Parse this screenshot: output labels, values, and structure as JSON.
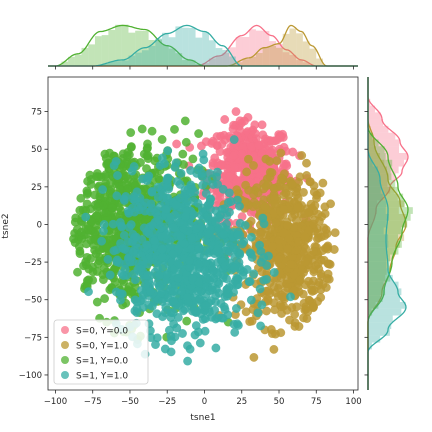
{
  "chart_data": {
    "type": "scatter",
    "subtype": "jointplot",
    "xlabel": "tsne1",
    "ylabel": "tsne2",
    "xlim": [
      -105,
      103
    ],
    "ylim": [
      -110,
      98
    ],
    "xticks": [
      "−100",
      "−75",
      "−50",
      "−25",
      "0",
      "25",
      "50",
      "75",
      "100"
    ],
    "xtick_values": [
      -100,
      -75,
      -50,
      -25,
      0,
      25,
      50,
      75,
      100
    ],
    "yticks": [
      "75",
      "50",
      "25",
      "0",
      "−25",
      "−50",
      "−75",
      "−100"
    ],
    "ytick_values": [
      75,
      50,
      25,
      0,
      -25,
      -50,
      -75,
      -100
    ],
    "legend_position": "lower-left",
    "series": [
      {
        "name": "S=0, Y=0.0",
        "color": "#f77189",
        "cluster": {
          "cx": 30,
          "cy": 35,
          "sx": 14,
          "sy": 16
        },
        "kde_x": [
          [
            -5,
            0
          ],
          [
            10,
            0.25
          ],
          [
            25,
            0.75
          ],
          [
            35,
            1.0
          ],
          [
            45,
            0.75
          ],
          [
            55,
            0.4
          ],
          [
            65,
            0.15
          ],
          [
            75,
            0
          ]
        ],
        "kde_y": [
          [
            -10,
            0
          ],
          [
            10,
            0.2
          ],
          [
            25,
            0.55
          ],
          [
            35,
            0.85
          ],
          [
            45,
            1.0
          ],
          [
            55,
            0.8
          ],
          [
            70,
            0.35
          ],
          [
            85,
            0
          ]
        ]
      },
      {
        "name": "S=0, Y=1.0",
        "color": "#bb9832",
        "cluster": {
          "cx": 55,
          "cy": -15,
          "sx": 16,
          "sy": 26
        },
        "kde_x": [
          [
            15,
            0
          ],
          [
            30,
            0.2
          ],
          [
            40,
            0.45
          ],
          [
            50,
            0.55
          ],
          [
            58,
            1.0
          ],
          [
            65,
            0.85
          ],
          [
            72,
            0.5
          ],
          [
            82,
            0
          ]
        ],
        "kde_y": [
          [
            -65,
            0
          ],
          [
            -45,
            0.35
          ],
          [
            -30,
            0.55
          ],
          [
            -15,
            0.7
          ],
          [
            0,
            0.95
          ],
          [
            15,
            0.8
          ],
          [
            30,
            0.5
          ],
          [
            55,
            0.15
          ],
          [
            70,
            0
          ]
        ]
      },
      {
        "name": "S=1, Y=0.0",
        "color": "#50b131",
        "cluster": {
          "cx": -52,
          "cy": 0,
          "sx": 24,
          "sy": 30
        },
        "kde_x": [
          [
            -100,
            0
          ],
          [
            -85,
            0.3
          ],
          [
            -70,
            0.85
          ],
          [
            -55,
            1.0
          ],
          [
            -40,
            0.9
          ],
          [
            -25,
            0.5
          ],
          [
            -10,
            0.15
          ],
          [
            0,
            0
          ]
        ],
        "kde_y": [
          [
            -65,
            0
          ],
          [
            -45,
            0.4
          ],
          [
            -25,
            0.6
          ],
          [
            -5,
            0.85
          ],
          [
            10,
            1.0
          ],
          [
            25,
            0.75
          ],
          [
            45,
            0.5
          ],
          [
            65,
            0
          ]
        ]
      },
      {
        "name": "S=1, Y=1.0",
        "color": "#36ada4",
        "cluster": {
          "cx": -15,
          "cy": -20,
          "sx": 22,
          "sy": 28
        },
        "kde_x": [
          [
            -75,
            0
          ],
          [
            -55,
            0.15
          ],
          [
            -40,
            0.45
          ],
          [
            -25,
            0.8
          ],
          [
            -12,
            1.0
          ],
          [
            0,
            0.85
          ],
          [
            12,
            0.5
          ],
          [
            25,
            0
          ]
        ],
        "kde_y": [
          [
            -85,
            0
          ],
          [
            -70,
            0.5
          ],
          [
            -55,
            0.95
          ],
          [
            -45,
            0.75
          ],
          [
            -30,
            0.5
          ],
          [
            -10,
            0.45
          ],
          [
            10,
            0.5
          ],
          [
            30,
            0.3
          ],
          [
            50,
            0
          ]
        ]
      }
    ]
  }
}
